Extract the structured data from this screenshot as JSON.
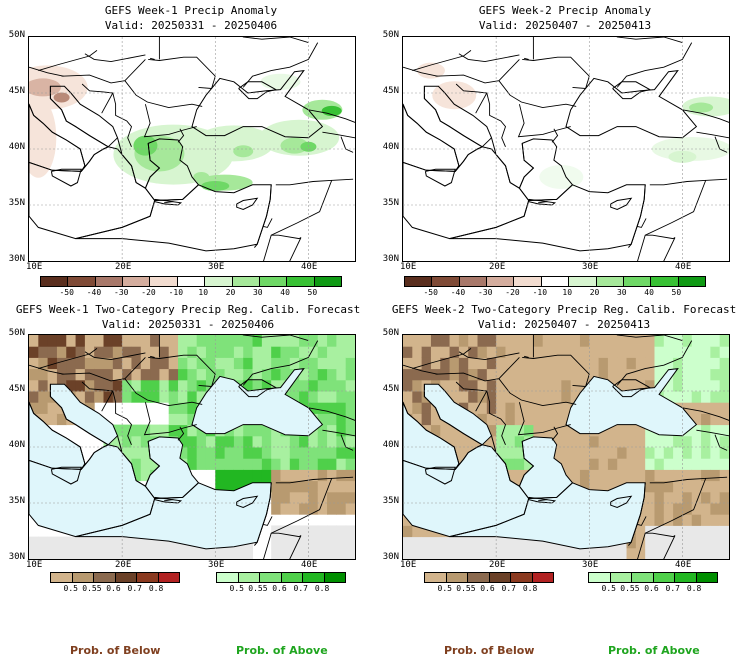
{
  "panels": {
    "tl": {
      "title": "GEFS Week-1 Precip Anomaly",
      "valid": "Valid: 20250331 - 20250406"
    },
    "tr": {
      "title": "GEFS Week-2 Precip Anomaly",
      "valid": "Valid: 20250407 - 20250413"
    },
    "bl": {
      "title": "GEFS Week-1 Two-Category Precip Reg. Calib. Forecast",
      "valid": "Valid: 20250331 - 20250406"
    },
    "br": {
      "title": "GEFS Week-2 Two-Category Precip Reg. Calib. Forecast",
      "valid": "Valid: 20250407 - 20250413"
    }
  },
  "axes": {
    "lat_labels": [
      "50N",
      "45N",
      "40N",
      "35N",
      "30N"
    ],
    "lon_labels": [
      "10E",
      "20E",
      "30E",
      "40E"
    ]
  },
  "anomaly_colorbar": {
    "ticks": [
      "-50",
      "-40",
      "-30",
      "-20",
      "-10",
      "10",
      "20",
      "30",
      "40",
      "50"
    ],
    "colors": [
      "#5a2e1e",
      "#7f4a36",
      "#a8786a",
      "#d4ad9e",
      "#f2dcd0",
      "#ffffff",
      "#d7f5d0",
      "#a6e89a",
      "#6fd866",
      "#38c134",
      "#0f9a14"
    ]
  },
  "prob_below": {
    "ticks": [
      "0.5",
      "0.55",
      "0.6",
      "0.7",
      "0.8"
    ],
    "colors": [
      "#d2b48c",
      "#b89a70",
      "#8b6a4f",
      "#6b4128",
      "#8b3a20",
      "#b22222"
    ],
    "label": "Prob. of Below",
    "label_color": "#7f3f1f"
  },
  "prob_above": {
    "ticks": [
      "0.5",
      "0.55",
      "0.6",
      "0.7",
      "0.8"
    ],
    "colors": [
      "#ccffcc",
      "#a8f0a0",
      "#7fe27a",
      "#4fd04a",
      "#22b722",
      "#008f00"
    ],
    "label": "Prob. of Above",
    "label_color": "#1fa51f"
  }
}
